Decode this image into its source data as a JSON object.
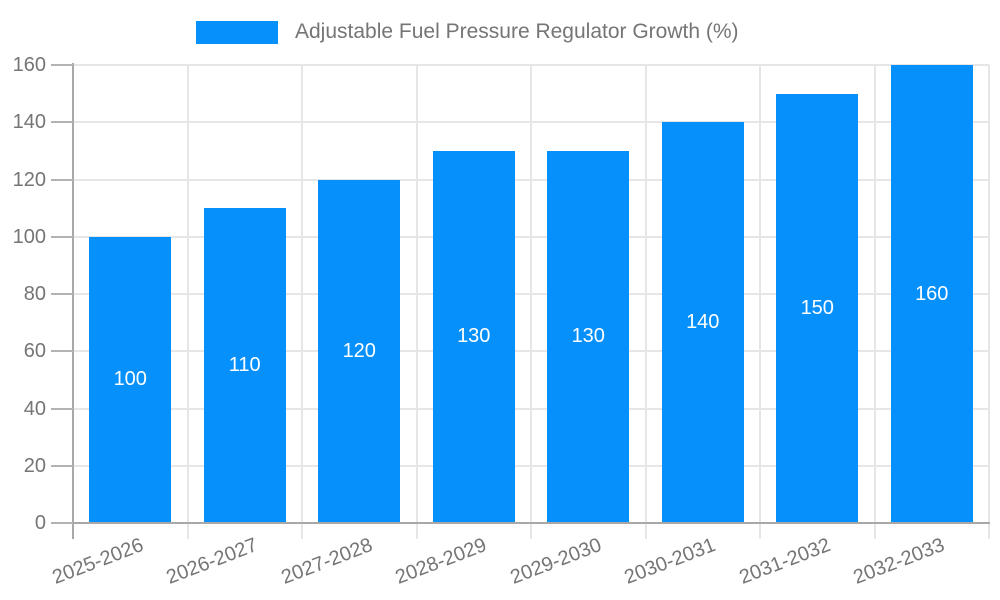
{
  "chart_data": {
    "type": "bar",
    "title": "",
    "legend_position": "top",
    "legend": [
      "Adjustable Fuel Pressure Regulator Growth (%)"
    ],
    "categories": [
      "2025-2026",
      "2026-2027",
      "2027-2028",
      "2028-2029",
      "2029-2030",
      "2030-2031",
      "2031-2032",
      "2032-2033"
    ],
    "series": [
      {
        "name": "Adjustable Fuel Pressure Regulator Growth (%)",
        "values": [
          100,
          110,
          120,
          130,
          130,
          140,
          150,
          160
        ]
      }
    ],
    "xlabel": "",
    "ylabel": "",
    "ylim": [
      0,
      160
    ],
    "ytick_step": 20,
    "yticks": [
      0,
      20,
      40,
      60,
      80,
      100,
      120,
      140,
      160
    ],
    "grid": true,
    "bar_labels_shown": true,
    "colors": {
      "bar": "#0590FB",
      "bar_label": "#FFFFFF",
      "grid": "#E6E6E6",
      "axis": "#A8A8A8",
      "tick": "#B3B3B3",
      "text": "#757575"
    }
  }
}
